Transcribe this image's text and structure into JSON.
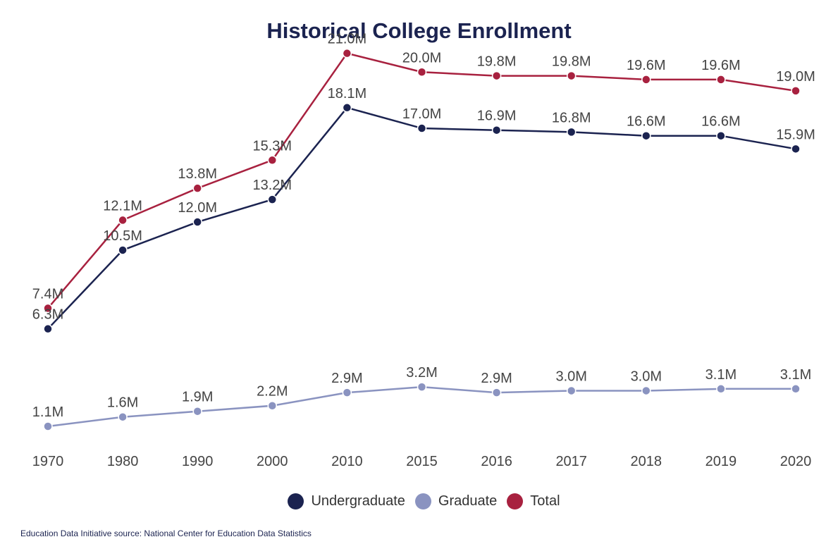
{
  "chart_data": {
    "type": "line",
    "title": "Historical College Enrollment",
    "categories": [
      "1970",
      "1980",
      "1990",
      "2000",
      "2010",
      "2015",
      "2016",
      "2017",
      "2018",
      "2019",
      "2020"
    ],
    "series": [
      {
        "name": "Undergraduate",
        "color": "#1b2350",
        "values": [
          6.3,
          10.5,
          12.0,
          13.2,
          18.1,
          17.0,
          16.9,
          16.8,
          16.6,
          16.6,
          15.9
        ],
        "labels": [
          "6.3M",
          "10.5M",
          "12.0M",
          "13.2M",
          "18.1M",
          "17.0M",
          "16.9M",
          "16.8M",
          "16.6M",
          "16.6M",
          "15.9M"
        ]
      },
      {
        "name": "Graduate",
        "color": "#8a93c0",
        "values": [
          1.1,
          1.6,
          1.9,
          2.2,
          2.9,
          3.2,
          2.9,
          3.0,
          3.0,
          3.1,
          3.1
        ],
        "labels": [
          "1.1M",
          "1.6M",
          "1.9M",
          "2.2M",
          "2.9M",
          "3.2M",
          "2.9M",
          "3.0M",
          "3.0M",
          "3.1M",
          "3.1M"
        ]
      },
      {
        "name": "Total",
        "color": "#a8213f",
        "values": [
          7.4,
          12.1,
          13.8,
          15.3,
          21.0,
          20.0,
          19.8,
          19.8,
          19.6,
          19.6,
          19.0
        ],
        "labels": [
          "7.4M",
          "12.1M",
          "13.8M",
          "15.3M",
          "21.0M",
          "20.0M",
          "19.8M",
          "19.8M",
          "19.6M",
          "19.6M",
          "19.0M"
        ]
      }
    ],
    "xlabel": "",
    "ylabel": "",
    "grid": false,
    "legend_position": "bottom-center"
  },
  "source_note": "Education Data Initiative source: National Center for Education Data Statistics"
}
